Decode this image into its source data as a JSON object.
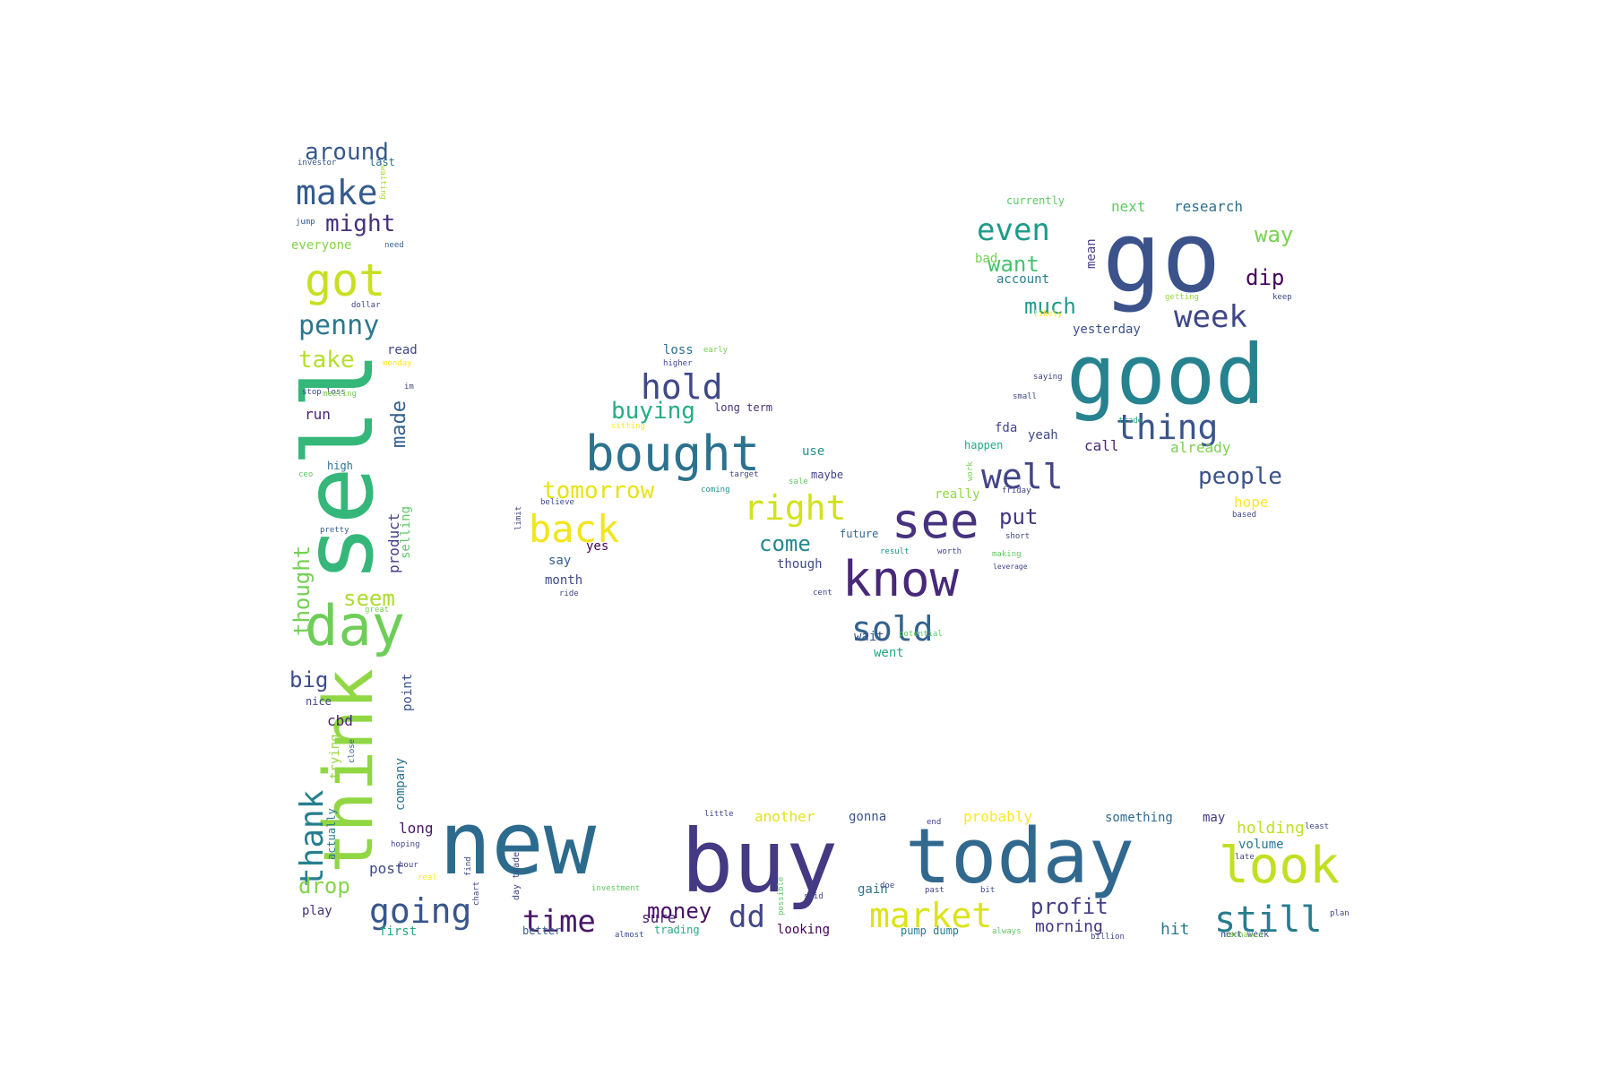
{
  "words": [
    {
      "text": "new",
      "size": 97,
      "color": "#2d6b8e"
    },
    {
      "text": "buy",
      "size": 97,
      "color": "#443983"
    },
    {
      "text": "today",
      "size": 85,
      "color": "#31688e"
    },
    {
      "text": "go",
      "size": 110,
      "color": "#3b528b"
    },
    {
      "text": "good",
      "size": 92,
      "color": "#26828e"
    },
    {
      "text": "sell",
      "size": 107,
      "color": "#35b779",
      "rotate": -90
    },
    {
      "text": "think",
      "size": 76,
      "color": "#90d743",
      "rotate": -90
    },
    {
      "text": "day",
      "size": 62,
      "color": "#6ece58"
    },
    {
      "text": "look",
      "size": 56,
      "color": "#c2df23"
    },
    {
      "text": "bought",
      "size": 54,
      "color": "#2c728e"
    },
    {
      "text": "know",
      "size": 54,
      "color": "#482878"
    },
    {
      "text": "see",
      "size": 54,
      "color": "#46327e"
    },
    {
      "text": "got",
      "size": 50,
      "color": "#c8e020"
    },
    {
      "text": "market",
      "size": 38,
      "color": "#dde318"
    },
    {
      "text": "still",
      "size": 40,
      "color": "#287c8e"
    },
    {
      "text": "back",
      "size": 42,
      "color": "#f1e51d"
    },
    {
      "text": "right",
      "size": 38,
      "color": "#d2e21b"
    },
    {
      "text": "hold",
      "size": 38,
      "color": "#3e4989"
    },
    {
      "text": "thing",
      "size": 38,
      "color": "#3a548c"
    },
    {
      "text": "well",
      "size": 38,
      "color": "#414487"
    },
    {
      "text": "sold",
      "size": 38,
      "color": "#33638d"
    },
    {
      "text": "make",
      "size": 38,
      "color": "#365c8d"
    },
    {
      "text": "going",
      "size": 38,
      "color": "#39558c"
    },
    {
      "text": "time",
      "size": 34,
      "color": "#48186a"
    },
    {
      "text": "dd",
      "size": 34,
      "color": "#404688"
    },
    {
      "text": "even",
      "size": 34,
      "color": "#1f9a8a"
    },
    {
      "text": "thank",
      "size": 36,
      "color": "#277f8e",
      "rotate": -90
    },
    {
      "text": "week",
      "size": 34,
      "color": "#3f4788"
    },
    {
      "text": "penny",
      "size": 30,
      "color": "#2a788e"
    },
    {
      "text": "people",
      "size": 26,
      "color": "#3b528b"
    },
    {
      "text": "around",
      "size": 26,
      "color": "#38598c"
    },
    {
      "text": "might",
      "size": 26,
      "color": "#46307e"
    },
    {
      "text": "take",
      "size": 26,
      "color": "#b5de2b"
    },
    {
      "text": "tomorrow",
      "size": 26,
      "color": "#e5e419"
    },
    {
      "text": "buying",
      "size": 26,
      "color": "#25ac82"
    },
    {
      "text": "seem",
      "size": 24,
      "color": "#addc30"
    },
    {
      "text": "thought",
      "size": 24,
      "color": "#75d054",
      "rotate": -90
    },
    {
      "text": "want",
      "size": 24,
      "color": "#4ac16d"
    },
    {
      "text": "much",
      "size": 24,
      "color": "#1e9c89"
    },
    {
      "text": "way",
      "size": 24,
      "color": "#7ad151"
    },
    {
      "text": "dip",
      "size": 24,
      "color": "#440154"
    },
    {
      "text": "come",
      "size": 24,
      "color": "#23888e"
    },
    {
      "text": "profit",
      "size": 24,
      "color": "#433e85"
    },
    {
      "text": "money",
      "size": 24,
      "color": "#471063"
    },
    {
      "text": "drop",
      "size": 24,
      "color": "#84d44b"
    },
    {
      "text": "big",
      "size": 24,
      "color": "#3d4d8a"
    },
    {
      "text": "put",
      "size": 24,
      "color": "#453781"
    },
    {
      "text": "made",
      "size": 22,
      "color": "#34608d",
      "rotate": -90
    },
    {
      "text": "holding",
      "size": 18,
      "color": "#c0df25"
    },
    {
      "text": "hit",
      "size": 18,
      "color": "#29798e"
    },
    {
      "text": "morning",
      "size": 18,
      "color": "#453581"
    },
    {
      "text": "probably",
      "size": 16,
      "color": "#fde725"
    },
    {
      "text": "another",
      "size": 16,
      "color": "#e2e418"
    },
    {
      "text": "sure",
      "size": 16,
      "color": "#482173"
    },
    {
      "text": "next",
      "size": 16,
      "color": "#5ec962"
    },
    {
      "text": "research",
      "size": 16,
      "color": "#2e6f8e"
    },
    {
      "text": "run",
      "size": 16,
      "color": "#482475"
    },
    {
      "text": "say",
      "size": 14,
      "color": "#355f8d"
    },
    {
      "text": "month",
      "size": 14,
      "color": "#3e4a89"
    },
    {
      "text": "yes",
      "size": 14,
      "color": "#440154"
    },
    {
      "text": "loss",
      "size": 14,
      "color": "#2d708e"
    },
    {
      "text": "use",
      "size": 14,
      "color": "#21918c"
    },
    {
      "text": "maybe",
      "size": 12,
      "color": "#414487"
    },
    {
      "text": "though",
      "size": 14,
      "color": "#3e4989"
    },
    {
      "text": "future",
      "size": 12,
      "color": "#31688e"
    },
    {
      "text": "wait",
      "size": 14,
      "color": "#39558c"
    },
    {
      "text": "went",
      "size": 14,
      "color": "#22a884"
    },
    {
      "text": "call",
      "size": 16,
      "color": "#482878"
    },
    {
      "text": "already",
      "size": 16,
      "color": "#7ad151"
    },
    {
      "text": "yeah",
      "size": 14,
      "color": "#3f4788"
    },
    {
      "text": "fda",
      "size": 14,
      "color": "#414487"
    },
    {
      "text": "really",
      "size": 14,
      "color": "#90d743"
    },
    {
      "text": "hope",
      "size": 16,
      "color": "#fde725"
    },
    {
      "text": "yesterday",
      "size": 14,
      "color": "#3b528b"
    },
    {
      "text": "currently",
      "size": 12,
      "color": "#5ec962"
    },
    {
      "text": "account",
      "size": 14,
      "color": "#26828e"
    },
    {
      "text": "bad",
      "size": 14,
      "color": "#75d054"
    },
    {
      "text": "mean",
      "size": 14,
      "color": "#433e85",
      "rotate": -90
    },
    {
      "text": "something",
      "size": 14,
      "color": "#31688e"
    },
    {
      "text": "may",
      "size": 14,
      "color": "#443983"
    },
    {
      "text": "volume",
      "size": 14,
      "color": "#2a788e"
    },
    {
      "text": "gonna",
      "size": 14,
      "color": "#3b528b"
    },
    {
      "text": "gain",
      "size": 14,
      "color": "#2a788e"
    },
    {
      "text": "looking",
      "size": 14,
      "color": "#440154"
    },
    {
      "text": "trading",
      "size": 12,
      "color": "#25ac82"
    },
    {
      "text": "better",
      "size": 12,
      "color": "#355f8d"
    },
    {
      "text": "first",
      "size": 14,
      "color": "#22a884"
    },
    {
      "text": "play",
      "size": 14,
      "color": "#46307e"
    },
    {
      "text": "post",
      "size": 16,
      "color": "#3e4a89"
    },
    {
      "text": "long",
      "size": 16,
      "color": "#48186a"
    },
    {
      "text": "cbd",
      "size": 16,
      "color": "#482173"
    },
    {
      "text": "nice",
      "size": 12,
      "color": "#3f4788"
    },
    {
      "text": "high",
      "size": 12,
      "color": "#2c728e"
    },
    {
      "text": "read",
      "size": 14,
      "color": "#404688"
    },
    {
      "text": "last",
      "size": 12,
      "color": "#2d708e"
    },
    {
      "text": "everyone",
      "size": 14,
      "color": "#84d44b"
    },
    {
      "text": "product",
      "size": 16,
      "color": "#433e85",
      "rotate": -90
    },
    {
      "text": "selling",
      "size": 14,
      "color": "#5ec962",
      "rotate": -90
    },
    {
      "text": "trying",
      "size": 14,
      "color": "#95d840",
      "rotate": -90
    },
    {
      "text": "company",
      "size": 14,
      "color": "#2d708e",
      "rotate": -90
    },
    {
      "text": "point",
      "size": 14,
      "color": "#3b528b",
      "rotate": -90
    },
    {
      "text": "actually",
      "size": 12,
      "color": "#2a788e",
      "rotate": -90
    },
    {
      "text": "long term",
      "size": 12,
      "color": "#46307e"
    },
    {
      "text": "pump dump",
      "size": 12,
      "color": "#287c8e"
    },
    {
      "text": "next week",
      "size": 10,
      "color": "#3e4989"
    },
    {
      "text": "stop loss",
      "size": 9,
      "color": "#3f4788"
    },
    {
      "text": "day trade",
      "size": 10,
      "color": "#404688",
      "rotate": -90
    },
    {
      "text": "investor",
      "size": 9,
      "color": "#3b528b"
    },
    {
      "text": "waiting",
      "size": 9,
      "color": "#addc30",
      "rotate": 90
    },
    {
      "text": "jump",
      "size": 9,
      "color": "#355f8d"
    },
    {
      "text": "need",
      "size": 9,
      "color": "#355f8d"
    },
    {
      "text": "dollar",
      "size": 9,
      "color": "#404688"
    },
    {
      "text": "monday",
      "size": 9,
      "color": "#fde725"
    },
    {
      "text": "im",
      "size": 9,
      "color": "#3e4a89"
    },
    {
      "text": "meeting",
      "size": 9,
      "color": "#75d054"
    },
    {
      "text": "ceo",
      "size": 9,
      "color": "#5ec962"
    },
    {
      "text": "pretty",
      "size": 9,
      "color": "#355f8d"
    },
    {
      "text": "great",
      "size": 9,
      "color": "#75d054"
    },
    {
      "text": "close",
      "size": 9,
      "color": "#355f8d",
      "rotate": -90
    },
    {
      "text": "hoping",
      "size": 9,
      "color": "#404688"
    },
    {
      "text": "hour",
      "size": 9,
      "color": "#404688"
    },
    {
      "text": "real",
      "size": 9,
      "color": "#fde725"
    },
    {
      "text": "chart",
      "size": 9,
      "color": "#404688",
      "rotate": -90
    },
    {
      "text": "find",
      "size": 9,
      "color": "#3e4a89",
      "rotate": -90
    },
    {
      "text": "limit",
      "size": 9,
      "color": "#404688",
      "rotate": -90
    },
    {
      "text": "believe",
      "size": 9,
      "color": "#3e4a89"
    },
    {
      "text": "ride",
      "size": 9,
      "color": "#404688"
    },
    {
      "text": "coming",
      "size": 9,
      "color": "#21918c"
    },
    {
      "text": "little",
      "size": 9,
      "color": "#404688"
    },
    {
      "text": "investment",
      "size": 9,
      "color": "#5ec962"
    },
    {
      "text": "almost",
      "size": 9,
      "color": "#3e4a89"
    },
    {
      "text": "always",
      "size": 9,
      "color": "#5ec962"
    },
    {
      "text": "billion",
      "size": 9,
      "color": "#404688"
    },
    {
      "text": "cannabis",
      "size": 9,
      "color": "#75d054"
    },
    {
      "text": "target",
      "size": 9,
      "color": "#404688"
    },
    {
      "text": "result",
      "size": 9,
      "color": "#21918c"
    },
    {
      "text": "worth",
      "size": 9,
      "color": "#404688"
    },
    {
      "text": "short",
      "size": 9,
      "color": "#3e4a89"
    },
    {
      "text": "making",
      "size": 9,
      "color": "#5ec962"
    },
    {
      "text": "leverage",
      "size": 8,
      "color": "#404688"
    },
    {
      "text": "potential",
      "size": 9,
      "color": "#5ec962"
    },
    {
      "text": "cent",
      "size": 9,
      "color": "#404688"
    },
    {
      "text": "happen",
      "size": 12,
      "color": "#22a884"
    },
    {
      "text": "work",
      "size": 9,
      "color": "#75d054",
      "rotate": -90
    },
    {
      "text": "friday",
      "size": 9,
      "color": "#404688"
    },
    {
      "text": "small",
      "size": 9,
      "color": "#3e4a89"
    },
    {
      "text": "saying",
      "size": 9,
      "color": "#404688"
    },
    {
      "text": "trade",
      "size": 9,
      "color": "#22a884"
    },
    {
      "text": "getting",
      "size": 9,
      "color": "#95d840"
    },
    {
      "text": "keep",
      "size": 9,
      "color": "#3e4a89"
    },
    {
      "text": "likely",
      "size": 9,
      "color": "#fde725"
    },
    {
      "text": "based",
      "size": 9,
      "color": "#3e4a89"
    },
    {
      "text": "least",
      "size": 9,
      "color": "#3e4a89"
    },
    {
      "text": "late",
      "size": 9,
      "color": "#404688"
    },
    {
      "text": "doe",
      "size": 9,
      "color": "#404688"
    },
    {
      "text": "past",
      "size": 9,
      "color": "#404688"
    },
    {
      "text": "bit",
      "size": 9,
      "color": "#3e4a89"
    },
    {
      "text": "end",
      "size": 9,
      "color": "#404688"
    },
    {
      "text": "said",
      "size": 9,
      "color": "#404688"
    },
    {
      "text": "possible",
      "size": 9,
      "color": "#5ec962",
      "rotate": -90
    },
    {
      "text": "higher",
      "size": 9,
      "color": "#404688"
    },
    {
      "text": "early",
      "size": 9,
      "color": "#75d054"
    },
    {
      "text": "sitting",
      "size": 9,
      "color": "#fde725"
    },
    {
      "text": "sale",
      "size": 9,
      "color": "#5ec962"
    },
    {
      "text": "plan",
      "size": 9,
      "color": "#404688"
    }
  ]
}
